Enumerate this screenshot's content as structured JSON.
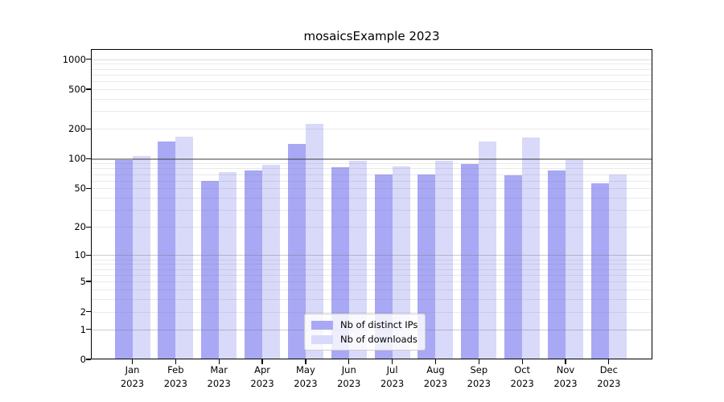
{
  "title": "mosaicsExample 2023",
  "chart_data": {
    "type": "bar",
    "title": "mosaicsExample 2023",
    "categories": [
      "Jan",
      "Feb",
      "Mar",
      "Apr",
      "May",
      "Jun",
      "Jul",
      "Aug",
      "Sep",
      "Oct",
      "Nov",
      "Dec"
    ],
    "year_label": "2023",
    "series": [
      {
        "name": "Nb of distinct IPs",
        "color": "#a8a8f5",
        "values": [
          97,
          150,
          60,
          76,
          142,
          82,
          69,
          69,
          89,
          68,
          76,
          56
        ]
      },
      {
        "name": "Nb of downloads",
        "color": "#d9d9fa",
        "values": [
          107,
          168,
          73,
          87,
          225,
          95,
          84,
          95,
          150,
          165,
          97,
          69
        ]
      }
    ],
    "yticks": [
      0,
      1,
      2,
      5,
      10,
      20,
      50,
      100,
      200,
      500,
      1000
    ],
    "ylim": [
      0,
      1000
    ],
    "yscale": "log1p",
    "grid": true,
    "legend_position": "bottom-center",
    "legend_labels": [
      "Nb of distinct IPs",
      "Nb of downloads"
    ]
  }
}
